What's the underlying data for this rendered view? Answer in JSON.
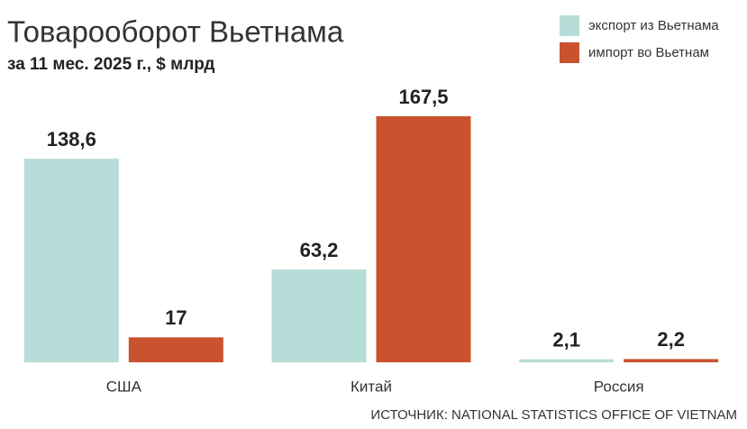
{
  "chart_data": {
    "type": "bar",
    "title": "Товарооборот Вьетнама",
    "subtitle": "за 11 мес. 2025 г., $ млрд",
    "source": "ИСТОЧНИК: NATIONAL STATISTICS OFFICE OF VIETNAM",
    "categories": [
      "США",
      "Китай",
      "Россия"
    ],
    "series": [
      {
        "name": "экспорт из Вьетнама",
        "color": "#b6ddd7",
        "values": [
          138.6,
          63.2,
          2.1
        ],
        "value_labels": [
          "138,6",
          "63,2",
          "2,1"
        ]
      },
      {
        "name": "импорт во Вьетнам",
        "color": "#c9532f",
        "values": [
          17,
          167.5,
          2.2
        ],
        "value_labels": [
          "17",
          "167,5",
          "2,2"
        ]
      }
    ],
    "legend": "top-right"
  }
}
